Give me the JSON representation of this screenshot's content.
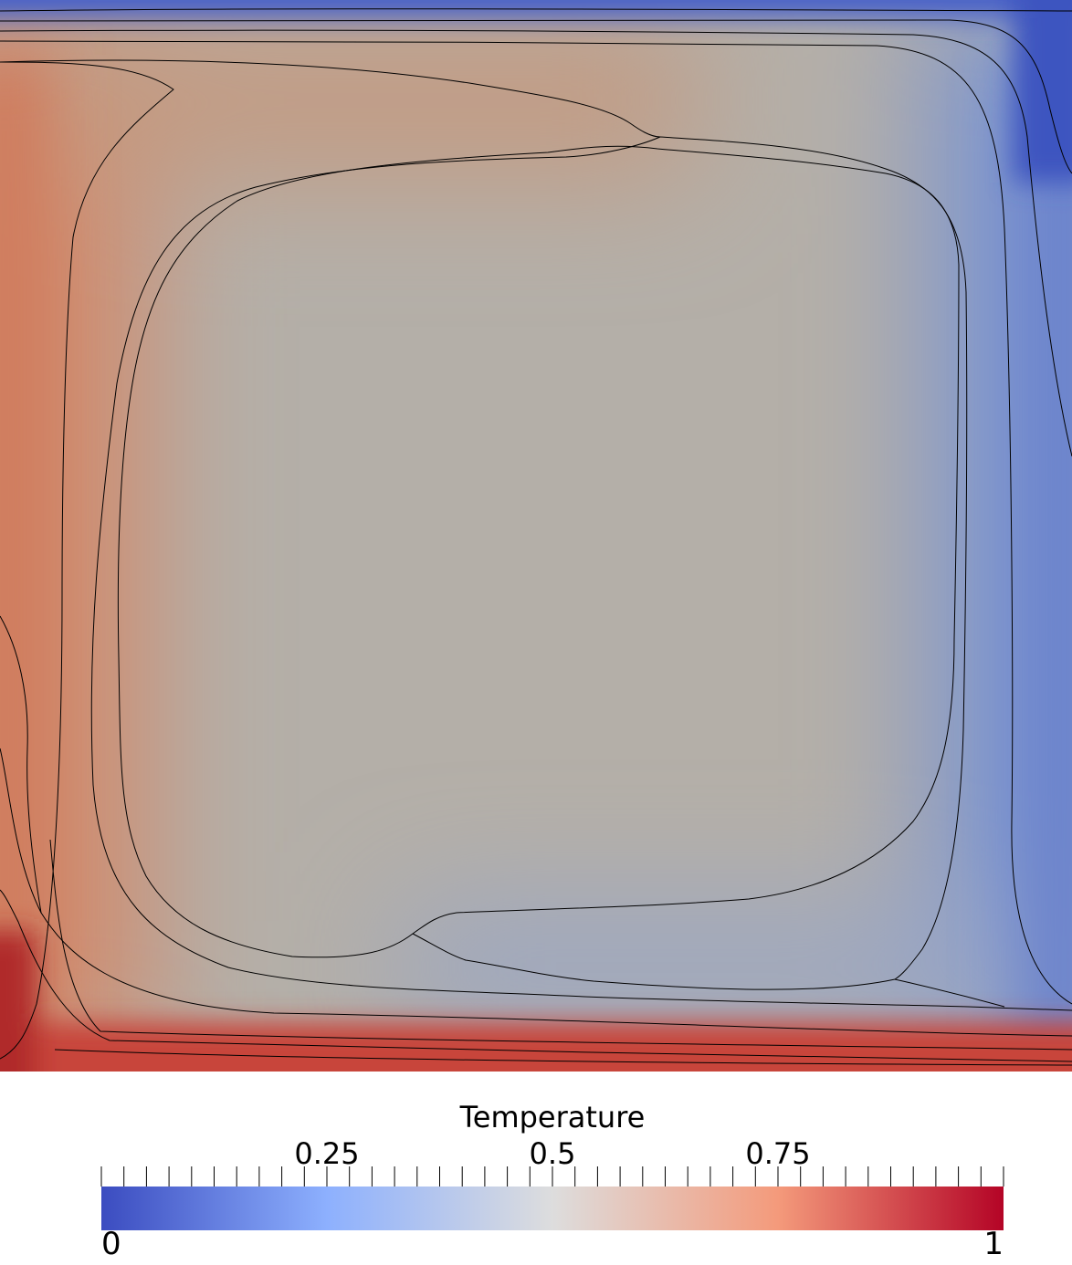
{
  "chart_data": {
    "type": "heatmap",
    "field": "Temperature",
    "colormap": "Cool to Warm",
    "colormap_stops": [
      {
        "value": 0,
        "color": "#3b4cc0"
      },
      {
        "value": 0.25,
        "color": "#8db0fe"
      },
      {
        "value": 0.5,
        "color": "#dddddd"
      },
      {
        "value": 0.75,
        "color": "#f49a7b"
      },
      {
        "value": 1,
        "color": "#b40426"
      }
    ],
    "range": [
      0,
      1
    ],
    "contour_levels": [
      0.1,
      0.2,
      0.3,
      0.4,
      0.6,
      0.7,
      0.8,
      0.9
    ],
    "legend": {
      "title": "Temperature",
      "min_label": "0",
      "max_label": "1",
      "major_ticks": [
        {
          "value": 0.25,
          "label": "0.25"
        },
        {
          "value": 0.5,
          "label": "0.5"
        },
        {
          "value": 0.75,
          "label": "0.75"
        }
      ],
      "minor_tick_count": 41,
      "placement": "bottom"
    }
  }
}
